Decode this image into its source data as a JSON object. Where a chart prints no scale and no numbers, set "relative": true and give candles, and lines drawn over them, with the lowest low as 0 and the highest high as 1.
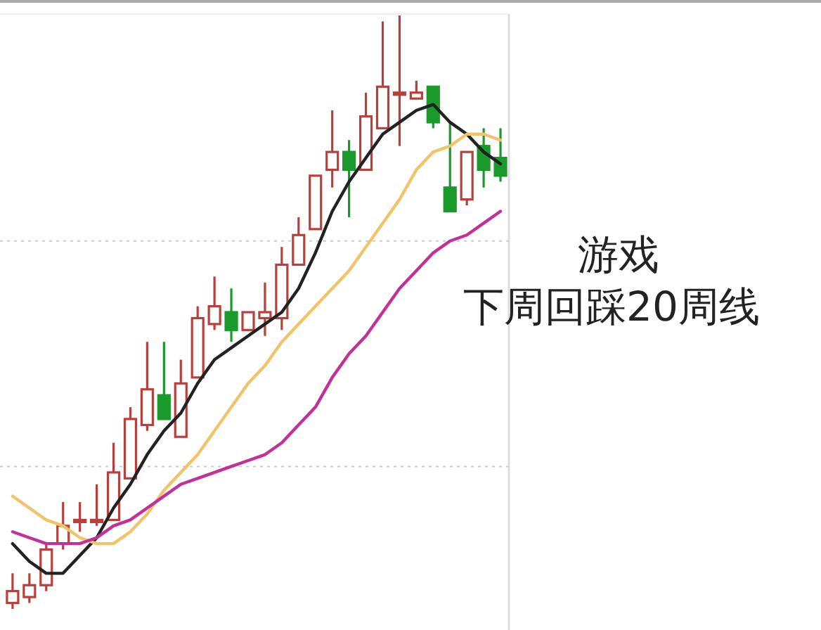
{
  "chart_data": {
    "type": "candlestick",
    "relative": true,
    "ref_lines": [
      {
        "axis": "y",
        "value": 0.62,
        "color": "#cccccc",
        "line_style": "dotted"
      },
      {
        "axis": "y",
        "value": 0.24,
        "color": "#cccccc",
        "line_style": "dotted"
      }
    ],
    "categories": [
      null,
      null,
      null,
      null,
      null,
      null,
      null,
      null,
      null,
      null,
      null,
      null,
      null,
      null,
      null,
      null,
      null,
      null,
      null,
      null,
      null,
      null,
      null,
      null,
      null,
      null,
      null,
      null,
      null,
      null
    ],
    "ohlc": [
      [
        0.01,
        0.06,
        0.0,
        0.03
      ],
      [
        0.02,
        0.06,
        0.01,
        0.04
      ],
      [
        0.04,
        0.11,
        0.03,
        0.1
      ],
      [
        0.11,
        0.18,
        0.1,
        0.14
      ],
      [
        0.15,
        0.18,
        0.13,
        0.15
      ],
      [
        0.15,
        0.21,
        0.14,
        0.15
      ],
      [
        0.15,
        0.28,
        0.15,
        0.23
      ],
      [
        0.22,
        0.34,
        0.22,
        0.32
      ],
      [
        0.31,
        0.45,
        0.3,
        0.37
      ],
      [
        0.36,
        0.45,
        0.32,
        0.32
      ],
      [
        0.29,
        0.42,
        0.29,
        0.38
      ],
      [
        0.39,
        0.51,
        0.39,
        0.49
      ],
      [
        0.48,
        0.56,
        0.47,
        0.51
      ],
      [
        0.5,
        0.54,
        0.45,
        0.47
      ],
      [
        0.47,
        0.5,
        0.47,
        0.5
      ],
      [
        0.49,
        0.55,
        0.46,
        0.5
      ],
      [
        0.49,
        0.61,
        0.47,
        0.58
      ],
      [
        0.58,
        0.66,
        0.58,
        0.63
      ],
      [
        0.64,
        0.73,
        0.64,
        0.73
      ],
      [
        0.74,
        0.84,
        0.71,
        0.77
      ],
      [
        0.77,
        0.79,
        0.66,
        0.74
      ],
      [
        0.74,
        0.87,
        0.74,
        0.83
      ],
      [
        0.81,
        0.99,
        0.81,
        0.88
      ],
      [
        0.87,
        1.0,
        0.78,
        0.87
      ],
      [
        0.86,
        0.89,
        0.86,
        0.87
      ],
      [
        0.88,
        0.88,
        0.81,
        0.82
      ],
      [
        0.71,
        0.82,
        0.67,
        0.67
      ],
      [
        0.69,
        0.77,
        0.68,
        0.77
      ],
      [
        0.78,
        0.81,
        0.71,
        0.74
      ],
      [
        0.76,
        0.81,
        0.72,
        0.73
      ]
    ],
    "series": [
      {
        "type": "line",
        "color": "#222222",
        "values": [
          0.11,
          0.08,
          0.06,
          0.06,
          0.09,
          0.12,
          0.17,
          0.21,
          0.26,
          0.3,
          0.33,
          0.38,
          0.42,
          0.44,
          0.46,
          0.48,
          0.5,
          0.54,
          0.6,
          0.67,
          0.72,
          0.76,
          0.8,
          0.82,
          0.84,
          0.85,
          0.82,
          0.8,
          0.77,
          0.75
        ]
      },
      {
        "type": "line",
        "color": "#f2c46a",
        "values": [
          0.19,
          0.17,
          0.15,
          0.14,
          0.12,
          0.11,
          0.11,
          0.13,
          0.16,
          0.2,
          0.23,
          0.26,
          0.3,
          0.34,
          0.38,
          0.41,
          0.45,
          0.48,
          0.51,
          0.54,
          0.57,
          0.61,
          0.65,
          0.69,
          0.74,
          0.77,
          0.78,
          0.8,
          0.8,
          0.79
        ]
      },
      {
        "type": "line",
        "color": "#c2309a",
        "values": [
          0.13,
          0.12,
          0.11,
          0.11,
          0.11,
          0.12,
          0.14,
          0.15,
          0.17,
          0.19,
          0.21,
          0.22,
          0.23,
          0.24,
          0.25,
          0.26,
          0.28,
          0.31,
          0.34,
          0.39,
          0.43,
          0.46,
          0.5,
          0.54,
          0.57,
          0.6,
          0.62,
          0.63,
          0.65,
          0.67
        ]
      }
    ],
    "annotations": [
      "游戏",
      "下周回踩20周线"
    ]
  }
}
